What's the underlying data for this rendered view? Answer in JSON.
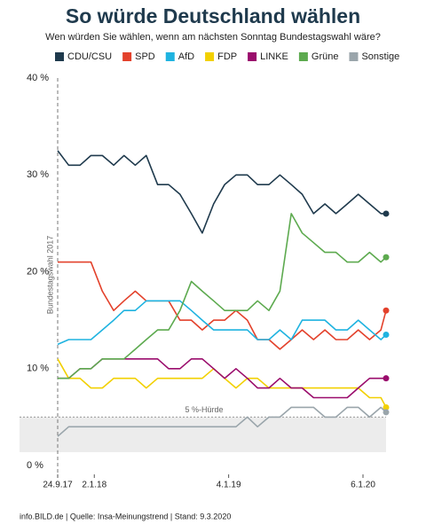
{
  "chart_data": {
    "type": "line",
    "title": "So würde Deutschland wählen",
    "subtitle": "Wen würden Sie wählen, wenn am nächsten Sonntag Bundestagswahl wäre?",
    "footer": "info.BILD.de | Quelle: Insa-Meinungstrend | Stand: 9.3.2020",
    "x": [
      "2017-09-24",
      "2017-10-24",
      "2017-11-24",
      "2017-12-24",
      "2018-01-24",
      "2018-02-24",
      "2018-03-24",
      "2018-04-24",
      "2018-05-24",
      "2018-06-24",
      "2018-07-24",
      "2018-08-24",
      "2018-09-24",
      "2018-10-24",
      "2018-11-24",
      "2018-12-24",
      "2019-01-24",
      "2019-02-24",
      "2019-03-24",
      "2019-04-24",
      "2019-05-24",
      "2019-06-24",
      "2019-07-24",
      "2019-08-24",
      "2019-09-24",
      "2019-10-24",
      "2019-11-24",
      "2019-12-24",
      "2020-01-24",
      "2020-02-24",
      "2020-03-09"
    ],
    "xlim": [
      "2017-09-24",
      "2020-03-09"
    ],
    "xticks": [
      {
        "value": "2017-09-24",
        "label": "24.9.17"
      },
      {
        "value": "2018-01-02",
        "label": "2.1.18"
      },
      {
        "value": "2019-01-04",
        "label": "4.1.19"
      },
      {
        "value": "2020-01-06",
        "label": "6.1.20"
      }
    ],
    "ylim": [
      0,
      40
    ],
    "yticks": [
      {
        "value": 0,
        "label": "0 %"
      },
      {
        "value": 10,
        "label": "10 %"
      },
      {
        "value": 20,
        "label": "20 %"
      },
      {
        "value": 30,
        "label": "30 %"
      },
      {
        "value": 40,
        "label": "40 %"
      }
    ],
    "threshold": {
      "value": 5,
      "label": "5 %-Hürde"
    },
    "marker": {
      "x": "2017-09-24",
      "label": "Bundestagswahl 2017"
    },
    "series": [
      {
        "name": "CDU/CSU",
        "color": "#1f3a4d",
        "values": [
          32.5,
          31,
          31,
          32,
          32,
          31,
          32,
          31,
          32,
          29,
          29,
          28,
          26,
          24,
          27,
          29,
          30,
          30,
          29,
          29,
          30,
          29,
          28,
          26,
          27,
          26,
          27,
          28,
          27,
          26,
          26
        ]
      },
      {
        "name": "SPD",
        "color": "#e3412b",
        "values": [
          21,
          21,
          21,
          21,
          18,
          16,
          17,
          18,
          17,
          17,
          17,
          15,
          15,
          14,
          15,
          15,
          16,
          15,
          13,
          13,
          12,
          13,
          14,
          13,
          14,
          13,
          13,
          14,
          13,
          14,
          16
        ]
      },
      {
        "name": "AfD",
        "color": "#1fb3e0",
        "values": [
          12.5,
          13,
          13,
          13,
          14,
          15,
          16,
          16,
          17,
          17,
          17,
          17,
          16,
          15,
          14,
          14,
          14,
          14,
          13,
          13,
          14,
          13,
          15,
          15,
          15,
          14,
          14,
          15,
          14,
          13,
          13.5
        ]
      },
      {
        "name": "FDP",
        "color": "#f2d000",
        "values": [
          11,
          9,
          9,
          8,
          8,
          9,
          9,
          9,
          8,
          9,
          9,
          9,
          9,
          9,
          10,
          9,
          8,
          9,
          9,
          8,
          8,
          8,
          8,
          8,
          8,
          8,
          8,
          8,
          7,
          7,
          6
        ]
      },
      {
        "name": "LINKE",
        "color": "#9a0c6c",
        "values": [
          9,
          9,
          10,
          10,
          11,
          11,
          11,
          11,
          11,
          11,
          10,
          10,
          11,
          11,
          10,
          9,
          10,
          9,
          8,
          8,
          9,
          8,
          8,
          7,
          7,
          7,
          7,
          8,
          9,
          9,
          9
        ]
      },
      {
        "name": "Grüne",
        "color": "#5daa4f",
        "values": [
          9,
          9,
          10,
          10,
          11,
          11,
          11,
          12,
          13,
          14,
          14,
          16,
          19,
          18,
          17,
          16,
          16,
          16,
          17,
          16,
          18,
          26,
          24,
          23,
          22,
          22,
          21,
          21,
          22,
          21,
          21.5
        ]
      },
      {
        "name": "Sonstige",
        "color": "#9aa5ab",
        "values": [
          3,
          4,
          4,
          4,
          4,
          4,
          4,
          4,
          4,
          4,
          4,
          4,
          4,
          4,
          4,
          4,
          4,
          5,
          4,
          5,
          5,
          6,
          6,
          6,
          5,
          5,
          6,
          6,
          5,
          6,
          5.5
        ]
      }
    ]
  }
}
